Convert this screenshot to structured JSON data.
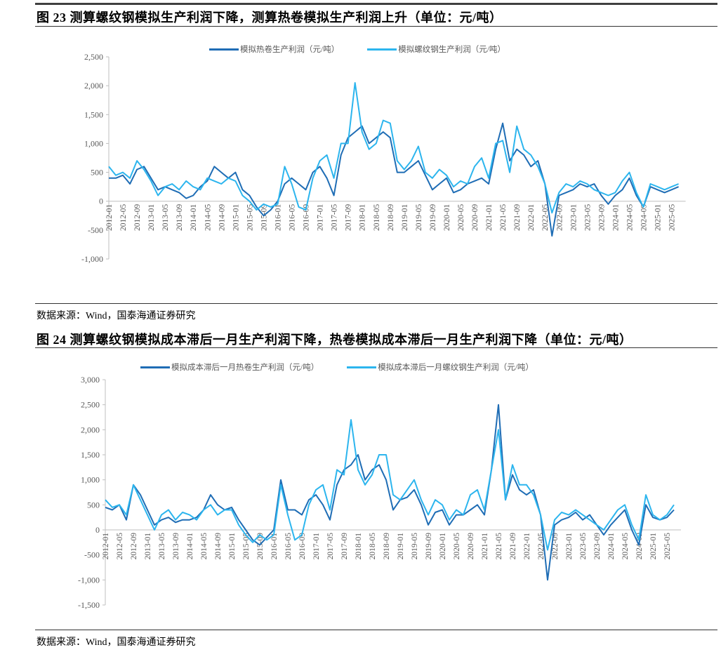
{
  "figure1": {
    "title": "图 23 测算螺纹钢模拟生产利润下降，测算热卷模拟生产利润上升（单位：元/吨）",
    "source": "数据来源：Wind，国泰海通证券研究"
  },
  "figure2": {
    "title": "图 24 测算螺纹钢模拟成本滞后一月生产利润下降，热卷模拟成本滞后一月生产利润下降（单位：元/吨）",
    "source": "数据来源：Wind，国泰海通证券研究"
  },
  "chart_data": [
    {
      "type": "line",
      "title": "",
      "xlabel": "",
      "ylabel": "",
      "ylim": [
        -1000,
        2500
      ],
      "yticks": [
        -1000,
        -500,
        0,
        500,
        1000,
        1500,
        2000,
        2500
      ],
      "ytick_labels": [
        "-1,000",
        "-500",
        "0",
        "500",
        "1,000",
        "1,500",
        "2,000",
        "2,500"
      ],
      "xtick_labels": [
        "2012-01",
        "2012-05",
        "2012-09",
        "2013-01",
        "2013-05",
        "2013-09",
        "2014-01",
        "2014-05",
        "2014-09",
        "2015-01",
        "2015-05",
        "2015-09",
        "2016-01",
        "2016-05",
        "2016-09",
        "2017-01",
        "2017-05",
        "2017-09",
        "2018-01",
        "2018-05",
        "2018-09",
        "2019-01",
        "2019-05",
        "2019-09",
        "2020-01",
        "2020-05",
        "2020-09",
        "2021-01",
        "2021-05",
        "2021-09",
        "2022-01",
        "2022-05",
        "2022-09",
        "2023-01",
        "2023-05",
        "2023-09",
        "2024-01",
        "2024-05",
        "2024-09",
        "2025-01",
        "2025-05"
      ],
      "x_start": "2012-01",
      "x_step_months": 2,
      "legend_position": "top-center",
      "series": [
        {
          "name": "模拟热卷生产利润（元/吨）",
          "color": "#1f6db5",
          "values": [
            400,
            400,
            450,
            300,
            550,
            600,
            400,
            200,
            250,
            200,
            150,
            50,
            100,
            250,
            350,
            600,
            500,
            400,
            500,
            200,
            100,
            -100,
            -250,
            -150,
            0,
            300,
            400,
            300,
            200,
            500,
            600,
            400,
            100,
            800,
            1100,
            1200,
            1300,
            1000,
            1100,
            1200,
            1100,
            500,
            500,
            600,
            700,
            450,
            200,
            300,
            400,
            150,
            200,
            300,
            350,
            400,
            300,
            900,
            1350,
            700,
            900,
            800,
            600,
            700,
            300,
            -600,
            100,
            150,
            200,
            300,
            250,
            300,
            100,
            -50,
            100,
            200,
            400,
            100,
            -100,
            250,
            200,
            150,
            200,
            250
          ]
        },
        {
          "name": "模拟螺纹钢生产利润（元/吨）",
          "color": "#2cb5ee",
          "values": [
            600,
            450,
            500,
            400,
            700,
            550,
            350,
            100,
            250,
            300,
            200,
            350,
            250,
            200,
            400,
            350,
            300,
            400,
            350,
            100,
            0,
            -150,
            -50,
            -100,
            -50,
            600,
            300,
            -100,
            -150,
            400,
            700,
            800,
            400,
            1000,
            1000,
            2050,
            1200,
            900,
            1000,
            1400,
            1350,
            700,
            550,
            700,
            950,
            500,
            400,
            550,
            450,
            250,
            350,
            300,
            600,
            750,
            400,
            1000,
            1050,
            500,
            1300,
            900,
            800,
            600,
            300,
            -200,
            150,
            300,
            250,
            350,
            300,
            200,
            150,
            100,
            150,
            350,
            500,
            150,
            -100,
            300,
            250,
            200,
            250,
            300
          ]
        }
      ]
    },
    {
      "type": "line",
      "title": "",
      "xlabel": "",
      "ylabel": "",
      "ylim": [
        -1500,
        3000
      ],
      "yticks": [
        -1500,
        -1000,
        -500,
        0,
        500,
        1000,
        1500,
        2000,
        2500,
        3000
      ],
      "ytick_labels": [
        "-1,500",
        "-1,000",
        "-500",
        "0",
        "500",
        "1,000",
        "1,500",
        "2,000",
        "2,500",
        "3,000"
      ],
      "xtick_labels": [
        "2012-01",
        "2012-05",
        "2012-09",
        "2013-01",
        "2013-05",
        "2013-09",
        "2014-01",
        "2014-05",
        "2014-09",
        "2015-01",
        "2015-05",
        "2015-09",
        "2016-01",
        "2016-05",
        "2016-09",
        "2017-01",
        "2017-05",
        "2017-09",
        "2018-01",
        "2018-05",
        "2018-09",
        "2019-01",
        "2019-05",
        "2019-09",
        "2020-01",
        "2020-05",
        "2020-09",
        "2021-01",
        "2021-05",
        "2021-09",
        "2022-01",
        "2022-05",
        "2022-09",
        "2023-01",
        "2023-05",
        "2023-09",
        "2024-01",
        "2024-05",
        "2024-09",
        "2025-01",
        "2025-05"
      ],
      "x_start": "2012-01",
      "x_step_months": 2,
      "legend_position": "top-center",
      "series": [
        {
          "name": "模拟成本滞后一月热卷生产利润（元/吨）",
          "color": "#1f6db5",
          "values": [
            450,
            400,
            500,
            200,
            900,
            700,
            400,
            100,
            200,
            250,
            150,
            200,
            200,
            250,
            400,
            700,
            500,
            400,
            450,
            200,
            0,
            -200,
            -300,
            -150,
            0,
            1000,
            400,
            400,
            300,
            600,
            700,
            500,
            200,
            900,
            1200,
            1300,
            1500,
            1000,
            1200,
            1300,
            1000,
            400,
            600,
            650,
            800,
            500,
            100,
            350,
            400,
            100,
            300,
            300,
            400,
            500,
            300,
            1200,
            2500,
            600,
            1100,
            800,
            700,
            800,
            300,
            -1000,
            100,
            200,
            250,
            350,
            200,
            300,
            100,
            -100,
            100,
            250,
            400,
            0,
            -300,
            500,
            250,
            200,
            250,
            400
          ]
        },
        {
          "name": "模拟成本滞后一月螺纹钢生产利润（元/吨）",
          "color": "#2cb5ee",
          "values": [
            600,
            450,
            500,
            300,
            900,
            600,
            300,
            0,
            300,
            400,
            200,
            350,
            300,
            200,
            400,
            500,
            300,
            400,
            400,
            100,
            -100,
            -250,
            -100,
            -200,
            -100,
            900,
            300,
            -200,
            -100,
            500,
            800,
            900,
            400,
            1200,
            1100,
            2200,
            1200,
            900,
            1100,
            1500,
            1500,
            700,
            600,
            800,
            1000,
            600,
            300,
            600,
            500,
            200,
            400,
            300,
            700,
            800,
            400,
            1200,
            2000,
            600,
            1300,
            900,
            900,
            700,
            300,
            -400,
            200,
            350,
            300,
            400,
            300,
            200,
            100,
            0,
            200,
            400,
            500,
            100,
            -200,
            700,
            300,
            200,
            300,
            500
          ]
        }
      ]
    }
  ]
}
